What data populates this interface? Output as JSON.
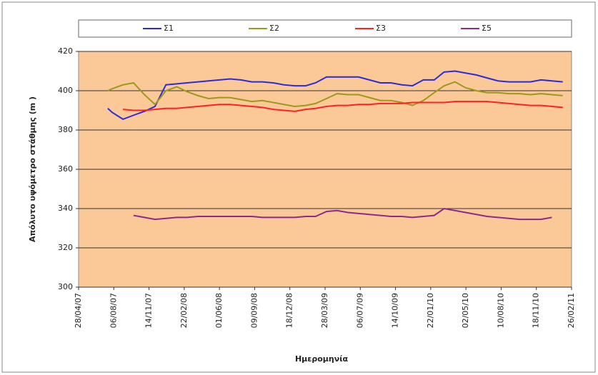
{
  "chart_data": {
    "type": "line",
    "xlabel": "Ημερομηνία",
    "ylabel": "Απόλυτο υψόμετρο στάθμης  (m )",
    "x": [
      "2007-07-20",
      "2007-08-01",
      "2007-09-01",
      "2007-10-01",
      "2007-11-01",
      "2007-12-01",
      "2008-01-01",
      "2008-02-01",
      "2008-03-01",
      "2008-04-01",
      "2008-05-01",
      "2008-06-01",
      "2008-07-01",
      "2008-08-01",
      "2008-09-01",
      "2008-10-01",
      "2008-11-01",
      "2008-12-01",
      "2009-01-01",
      "2009-02-01",
      "2009-03-01",
      "2009-04-01",
      "2009-05-01",
      "2009-06-01",
      "2009-07-01",
      "2009-08-01",
      "2009-09-01",
      "2009-10-01",
      "2009-11-01",
      "2009-12-01",
      "2010-01-01",
      "2010-02-01",
      "2010-03-01",
      "2010-04-01",
      "2010-05-01",
      "2010-06-01",
      "2010-07-01",
      "2010-08-01",
      "2010-09-01",
      "2010-10-01",
      "2010-11-01",
      "2010-12-01",
      "2011-01-01",
      "2011-02-01"
    ],
    "series": [
      {
        "name": "Σ1",
        "color": "#2b2bd9",
        "values": [
          391,
          389,
          385.5,
          387.5,
          389.5,
          392,
          403,
          403.5,
          404,
          404.5,
          405,
          405.5,
          406,
          405.5,
          404.5,
          404.5,
          404,
          403,
          402.5,
          402.5,
          404,
          407,
          407,
          407,
          407,
          405.5,
          404,
          404,
          403,
          402.5,
          405.5,
          405.5,
          409.5,
          410,
          409,
          408,
          406.5,
          405,
          404.5,
          404.5,
          404.5,
          405.5,
          405,
          404.5
        ]
      },
      {
        "name": "Σ2",
        "color": "#9a9a1c",
        "values": [
          400,
          401,
          403,
          404,
          398,
          393,
          400,
          402,
          399.5,
          397.5,
          396,
          396.5,
          396.5,
          395.5,
          394.5,
          395,
          394,
          393,
          392,
          392.5,
          393.5,
          396,
          398.5,
          398,
          398,
          396.5,
          395,
          395,
          394,
          392.5,
          395,
          399,
          402.5,
          404.5,
          401.5,
          400,
          399,
          399,
          398.5,
          398.5,
          398,
          398.5,
          398,
          397.5
        ]
      },
      {
        "name": "Σ3",
        "color": "#ff2222",
        "values": [
          null,
          null,
          390.5,
          390,
          390,
          390.5,
          391,
          391,
          391.5,
          392,
          392.5,
          393,
          393,
          392.5,
          392,
          391.5,
          390.5,
          390,
          389.5,
          390.5,
          391,
          392,
          392.5,
          392.5,
          393,
          393,
          393.5,
          393.5,
          393.5,
          394,
          394,
          394,
          394,
          394.5,
          394.5,
          394.5,
          394.5,
          394,
          393.5,
          393,
          392.5,
          392.5,
          392,
          391.5
        ]
      },
      {
        "name": "Σ5",
        "color": "#8b2a8b",
        "values": [
          null,
          null,
          null,
          336.5,
          335.5,
          334.5,
          335,
          335.5,
          335.5,
          336,
          336,
          336,
          336,
          336,
          336,
          335.5,
          335.5,
          335.5,
          335.5,
          336,
          336,
          338.5,
          339,
          338,
          337.5,
          337,
          336.5,
          336,
          336,
          335.5,
          336,
          336.5,
          340,
          339,
          338,
          337,
          336,
          335.5,
          335,
          334.5,
          334.5,
          334.5,
          335.5,
          null
        ]
      }
    ],
    "xlim": [
      "2007-04-28",
      "2011-02-26"
    ],
    "xticks": [
      {
        "value": "2007-04-28",
        "label": "28/04/07"
      },
      {
        "value": "2007-08-06",
        "label": "06/08/07"
      },
      {
        "value": "2007-11-14",
        "label": "14/11/07"
      },
      {
        "value": "2008-02-22",
        "label": "22/02/08"
      },
      {
        "value": "2008-06-01",
        "label": "01/06/08"
      },
      {
        "value": "2008-09-09",
        "label": "09/09/08"
      },
      {
        "value": "2008-12-18",
        "label": "18/12/08"
      },
      {
        "value": "2009-03-28",
        "label": "28/03/09"
      },
      {
        "value": "2009-07-06",
        "label": "06/07/09"
      },
      {
        "value": "2009-10-14",
        "label": "14/10/09"
      },
      {
        "value": "2010-01-22",
        "label": "22/01/10"
      },
      {
        "value": "2010-05-02",
        "label": "02/05/10"
      },
      {
        "value": "2010-08-10",
        "label": "10/08/10"
      },
      {
        "value": "2010-11-18",
        "label": "18/11/10"
      },
      {
        "value": "2011-02-26",
        "label": "26/02/11"
      }
    ],
    "ylim": [
      300,
      420
    ],
    "yticks": [
      300,
      320,
      340,
      360,
      380,
      400,
      420
    ],
    "grid": true,
    "legend": "top"
  }
}
